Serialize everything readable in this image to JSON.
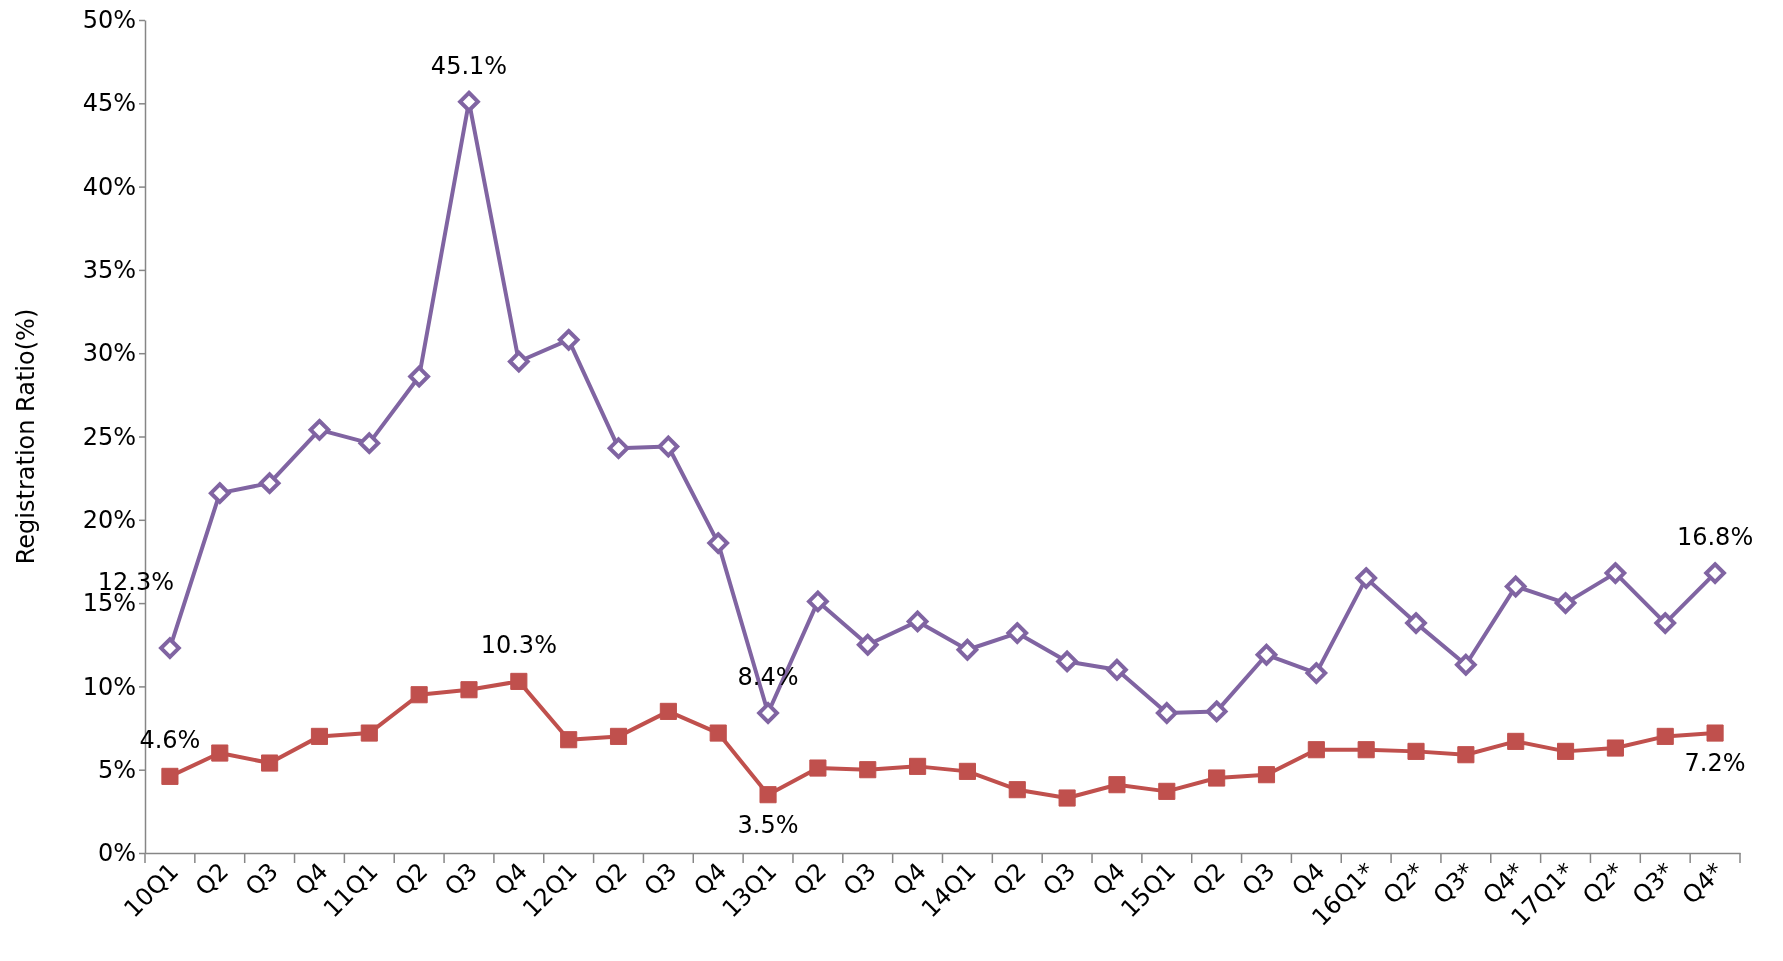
{
  "chart_data": {
    "type": "line",
    "ylabel": "Registration Ratio(%)",
    "categories": [
      "10Q1",
      "Q2",
      "Q3",
      "Q4",
      "11Q1",
      "Q2",
      "Q3",
      "Q4",
      "12Q1",
      "Q2",
      "Q3",
      "Q4",
      "13Q1",
      "Q2",
      "Q3",
      "Q4",
      "14Q1",
      "Q2",
      "Q3",
      "Q4",
      "15Q1",
      "Q2",
      "Q3",
      "Q4",
      "16Q1*",
      "Q2*",
      "Q3*",
      "Q4*",
      "17Q1*",
      "Q2*",
      "Q3*",
      "Q4*"
    ],
    "ylim": [
      0,
      50
    ],
    "yticks": [
      {
        "value": 0,
        "label": "0%"
      },
      {
        "value": 5,
        "label": "5%"
      },
      {
        "value": 10,
        "label": "10%"
      },
      {
        "value": 15,
        "label": "15%"
      },
      {
        "value": 20,
        "label": "20%"
      },
      {
        "value": 25,
        "label": "25%"
      },
      {
        "value": 30,
        "label": "30%"
      },
      {
        "value": 35,
        "label": "35%"
      },
      {
        "value": 40,
        "label": "40%"
      },
      {
        "value": 45,
        "label": "45%"
      },
      {
        "value": 50,
        "label": "50%"
      }
    ],
    "grid": false,
    "line_style": "solid",
    "series": [
      {
        "color": "#8064a2",
        "marker": "diamond",
        "values": [
          12.3,
          21.6,
          22.2,
          25.4,
          24.6,
          28.6,
          45.1,
          29.5,
          30.8,
          24.3,
          24.4,
          18.6,
          8.4,
          15.1,
          12.5,
          13.9,
          12.2,
          13.2,
          11.5,
          11.0,
          8.4,
          8.5,
          11.9,
          10.8,
          16.5,
          13.8,
          11.3,
          16.0,
          15.0,
          16.8,
          13.8,
          16.8
        ],
        "value_labels": [
          "12.3%",
          null,
          null,
          null,
          null,
          null,
          "45.1%",
          null,
          null,
          null,
          null,
          null,
          "8.4%",
          null,
          null,
          null,
          null,
          null,
          null,
          null,
          null,
          null,
          null,
          null,
          null,
          null,
          null,
          null,
          null,
          null,
          null,
          "16.8%"
        ]
      },
      {
        "color": "#c0504d",
        "marker": "square",
        "values": [
          4.6,
          6.0,
          5.4,
          7.0,
          7.2,
          9.5,
          9.8,
          10.3,
          6.8,
          7.0,
          8.5,
          7.2,
          3.5,
          5.1,
          5.0,
          5.2,
          4.9,
          3.8,
          3.3,
          4.1,
          3.7,
          4.5,
          4.7,
          6.2,
          6.2,
          6.1,
          5.9,
          6.7,
          6.1,
          6.3,
          7.0,
          7.2
        ],
        "value_labels": [
          "4.6%",
          null,
          null,
          null,
          null,
          null,
          null,
          "10.3%",
          null,
          null,
          null,
          null,
          "3.5%",
          null,
          null,
          null,
          null,
          null,
          null,
          null,
          null,
          null,
          null,
          null,
          null,
          null,
          null,
          null,
          null,
          null,
          null,
          "7.2%"
        ]
      }
    ]
  }
}
